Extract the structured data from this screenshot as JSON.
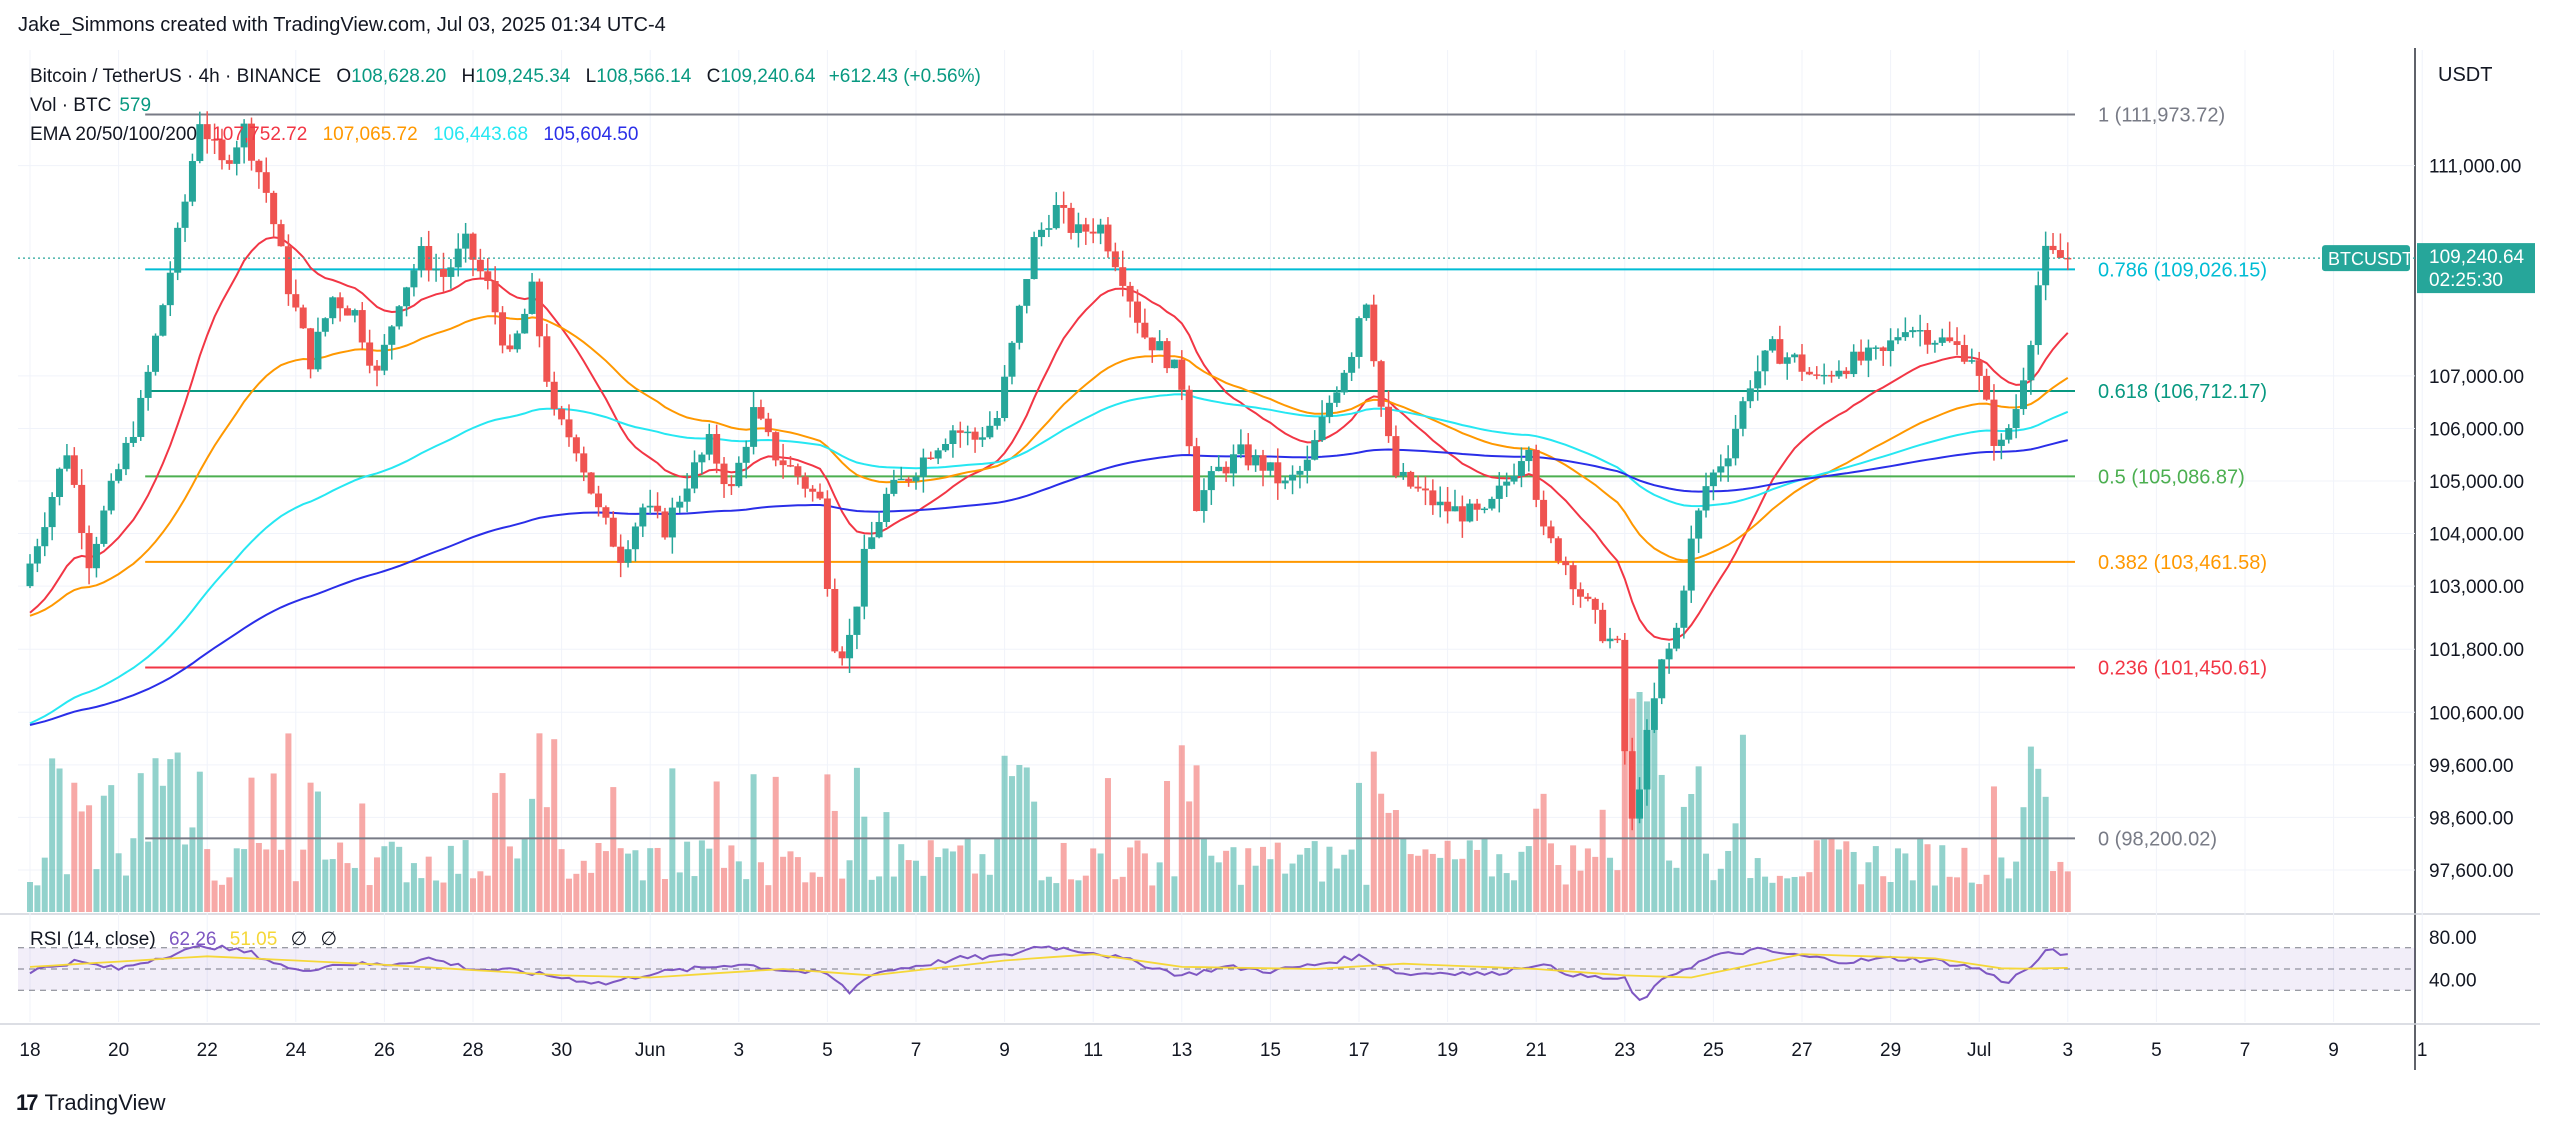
{
  "header": {
    "credit": "Jake_Simmons created with TradingView.com, Jul 03, 2025 01:34 UTC-4"
  },
  "legend": {
    "symbol": "Bitcoin / TetherUS · 4h · BINANCE",
    "open_label": "O",
    "open": "108,628.20",
    "high_label": "H",
    "high": "109,245.34",
    "low_label": "L",
    "low": "108,566.14",
    "close_label": "C",
    "close": "109,240.64",
    "change": "+612.43 (+0.56%)",
    "vol_label": "Vol · BTC",
    "vol_value": "579",
    "ema_label": "EMA 20/50/100/200",
    "ema20": "107,752.72",
    "ema50": "107,065.72",
    "ema100": "106,443.68",
    "ema200": "105,604.50",
    "rsi_label": "RSI (14, close)",
    "rsi_value": "62.26",
    "rsi_ma": "51.05",
    "rsi_na1": "∅",
    "rsi_na2": "∅"
  },
  "footer": {
    "brand": "TradingView"
  },
  "price_axis": {
    "currency": "USDT"
  },
  "colors": {
    "up": "#26a69a",
    "down": "#ef5350",
    "ema20": "#f23645",
    "ema50": "#ff9800",
    "ema100": "#26e7f2",
    "ema200": "#2a2ee8",
    "rsi_line": "#7e57c2",
    "rsi_ma": "#f5d738"
  },
  "chart_data": [
    {
      "type": "candlestick",
      "title": "Bitcoin / TetherUS · 4h · BINANCE",
      "ylim": [
        96800,
        113200
      ],
      "y_ticks": [
        "111,000.00",
        "107,000.00",
        "106,000.00",
        "105,000.00",
        "104,000.00",
        "103,000.00",
        "101,800.00",
        "100,600.00",
        "99,600.00",
        "98,600.00",
        "97,600.00"
      ],
      "y_tick_values": [
        111000,
        107000,
        106000,
        105000,
        104000,
        103000,
        101800,
        100600,
        99600,
        98600,
        97600
      ],
      "x_ticks": [
        "18",
        "20",
        "22",
        "24",
        "26",
        "28",
        "30",
        "Jun",
        "3",
        "5",
        "7",
        "9",
        "11",
        "13",
        "15",
        "17",
        "19",
        "21",
        "23",
        "25",
        "27",
        "29",
        "Jul",
        "3",
        "5",
        "7",
        "9",
        "1"
      ],
      "x_tick_days": [
        0,
        2,
        4,
        6,
        8,
        10,
        12,
        14,
        16,
        18,
        20,
        22,
        24,
        26,
        28,
        30,
        32,
        34,
        36,
        38,
        40,
        42,
        44,
        46,
        48,
        50,
        52,
        54
      ],
      "last_price_tag": {
        "symbol": "BTCUSDT",
        "price": "109,240.64",
        "countdown": "02:25:30",
        "value": 109240.64
      },
      "fib_levels": [
        {
          "ratio": "1",
          "label": "1 (111,973.72)",
          "price": 111973.72,
          "color": "#787b86"
        },
        {
          "ratio": "0.786",
          "label": "0.786 (109,026.15)",
          "price": 109026.15,
          "color": "#00bcd4"
        },
        {
          "ratio": "0.618",
          "label": "0.618 (106,712.17)",
          "price": 106712.17,
          "color": "#089981"
        },
        {
          "ratio": "0.5",
          "label": "0.5 (105,086.87)",
          "price": 105086.87,
          "color": "#4caf50"
        },
        {
          "ratio": "0.382",
          "label": "0.382 (103,461.58)",
          "price": 103461.58,
          "color": "#ff9800"
        },
        {
          "ratio": "0.236",
          "label": "0.236 (101,450.61)",
          "price": 101450.61,
          "color": "#f23645"
        },
        {
          "ratio": "0",
          "label": "0 (98,200.02)",
          "price": 98200.02,
          "color": "#787b86"
        }
      ],
      "price_path": [
        {
          "day": 0,
          "price": 103000
        },
        {
          "day": 1,
          "price": 105600
        },
        {
          "day": 1.5,
          "price": 103500
        },
        {
          "day": 2,
          "price": 104800
        },
        {
          "day": 2.7,
          "price": 106500
        },
        {
          "day": 3.2,
          "price": 108500
        },
        {
          "day": 3.6,
          "price": 110000
        },
        {
          "day": 4,
          "price": 111900
        },
        {
          "day": 4.5,
          "price": 111000
        },
        {
          "day": 5,
          "price": 111700
        },
        {
          "day": 5.5,
          "price": 110500
        },
        {
          "day": 6,
          "price": 108700
        },
        {
          "day": 6.5,
          "price": 107300
        },
        {
          "day": 7,
          "price": 108500
        },
        {
          "day": 7.5,
          "price": 108200
        },
        {
          "day": 8,
          "price": 107000
        },
        {
          "day": 8.5,
          "price": 108500
        },
        {
          "day": 9,
          "price": 109300
        },
        {
          "day": 9.5,
          "price": 108900
        },
        {
          "day": 10,
          "price": 109500
        },
        {
          "day": 10.5,
          "price": 108700
        },
        {
          "day": 11,
          "price": 107300
        },
        {
          "day": 11.5,
          "price": 108600
        },
        {
          "day": 12,
          "price": 106200
        },
        {
          "day": 12.5,
          "price": 105700
        },
        {
          "day": 13,
          "price": 104400
        },
        {
          "day": 13.5,
          "price": 103600
        },
        {
          "day": 14,
          "price": 104500
        },
        {
          "day": 14.5,
          "price": 104100
        },
        {
          "day": 15,
          "price": 105000
        },
        {
          "day": 15.5,
          "price": 105700
        },
        {
          "day": 16,
          "price": 104800
        },
        {
          "day": 16.5,
          "price": 106300
        },
        {
          "day": 17,
          "price": 105500
        },
        {
          "day": 17.5,
          "price": 105100
        },
        {
          "day": 18,
          "price": 104600
        },
        {
          "day": 18.3,
          "price": 102000
        },
        {
          "day": 18.6,
          "price": 101700
        },
        {
          "day": 19,
          "price": 103500
        },
        {
          "day": 19.5,
          "price": 104700
        },
        {
          "day": 20,
          "price": 105100
        },
        {
          "day": 20.5,
          "price": 105600
        },
        {
          "day": 21,
          "price": 106000
        },
        {
          "day": 21.5,
          "price": 105800
        },
        {
          "day": 22,
          "price": 106200
        },
        {
          "day": 22.4,
          "price": 107800
        },
        {
          "day": 22.8,
          "price": 109500
        },
        {
          "day": 23.3,
          "price": 110200
        },
        {
          "day": 23.8,
          "price": 109700
        },
        {
          "day": 24.3,
          "price": 109900
        },
        {
          "day": 24.8,
          "price": 109000
        },
        {
          "day": 25.3,
          "price": 107800
        },
        {
          "day": 25.8,
          "price": 107400
        },
        {
          "day": 26.2,
          "price": 106800
        },
        {
          "day": 26.5,
          "price": 104600
        },
        {
          "day": 27,
          "price": 105200
        },
        {
          "day": 27.5,
          "price": 105500
        },
        {
          "day": 28,
          "price": 105300
        },
        {
          "day": 28.5,
          "price": 104900
        },
        {
          "day": 29,
          "price": 105300
        },
        {
          "day": 29.5,
          "price": 106500
        },
        {
          "day": 30,
          "price": 107500
        },
        {
          "day": 30.3,
          "price": 108700
        },
        {
          "day": 30.7,
          "price": 106200
        },
        {
          "day": 31,
          "price": 105100
        },
        {
          "day": 31.5,
          "price": 104800
        },
        {
          "day": 32,
          "price": 104500
        },
        {
          "day": 32.5,
          "price": 104400
        },
        {
          "day": 33,
          "price": 104300
        },
        {
          "day": 33.5,
          "price": 105000
        },
        {
          "day": 34,
          "price": 105800
        },
        {
          "day": 34.3,
          "price": 104000
        },
        {
          "day": 34.8,
          "price": 103500
        },
        {
          "day": 35.2,
          "price": 102800
        },
        {
          "day": 35.6,
          "price": 102200
        },
        {
          "day": 36,
          "price": 101800
        },
        {
          "day": 36.3,
          "price": 98300
        },
        {
          "day": 36.6,
          "price": 99800
        },
        {
          "day": 37,
          "price": 101500
        },
        {
          "day": 37.3,
          "price": 102000
        },
        {
          "day": 37.6,
          "price": 103600
        },
        {
          "day": 38,
          "price": 104900
        },
        {
          "day": 38.5,
          "price": 105600
        },
        {
          "day": 39,
          "price": 106900
        },
        {
          "day": 39.5,
          "price": 107500
        },
        {
          "day": 40,
          "price": 107300
        },
        {
          "day": 40.5,
          "price": 106900
        },
        {
          "day": 41,
          "price": 107200
        },
        {
          "day": 41.5,
          "price": 107300
        },
        {
          "day": 42,
          "price": 107400
        },
        {
          "day": 42.5,
          "price": 108000
        },
        {
          "day": 43,
          "price": 107800
        },
        {
          "day": 43.5,
          "price": 107600
        },
        {
          "day": 44,
          "price": 107400
        },
        {
          "day": 44.3,
          "price": 106500
        },
        {
          "day": 44.6,
          "price": 105500
        },
        {
          "day": 45,
          "price": 106400
        },
        {
          "day": 45.3,
          "price": 107600
        },
        {
          "day": 45.6,
          "price": 109300
        },
        {
          "day": 46,
          "price": 109240
        }
      ]
    },
    {
      "type": "line",
      "title": "RSI (14, close)",
      "ylim": [
        0,
        100
      ],
      "y_ticks": [
        "80.00",
        "40.00"
      ],
      "y_tick_values": [
        80,
        40
      ],
      "band_upper": 70,
      "band_lower": 30,
      "series": [
        {
          "name": "RSI",
          "points": [
            {
              "day": 0,
              "rsi": 48
            },
            {
              "day": 1,
              "rsi": 57
            },
            {
              "day": 2,
              "rsi": 50
            },
            {
              "day": 3,
              "rsi": 62
            },
            {
              "day": 4,
              "rsi": 72
            },
            {
              "day": 5,
              "rsi": 65
            },
            {
              "day": 6,
              "rsi": 48
            },
            {
              "day": 7,
              "rsi": 55
            },
            {
              "day": 8,
              "rsi": 54
            },
            {
              "day": 9,
              "rsi": 60
            },
            {
              "day": 10,
              "rsi": 50
            },
            {
              "day": 11,
              "rsi": 48
            },
            {
              "day": 12,
              "rsi": 42
            },
            {
              "day": 13,
              "rsi": 36
            },
            {
              "day": 14,
              "rsi": 46
            },
            {
              "day": 15,
              "rsi": 50
            },
            {
              "day": 16,
              "rsi": 55
            },
            {
              "day": 17,
              "rsi": 49
            },
            {
              "day": 18,
              "rsi": 45
            },
            {
              "day": 18.5,
              "rsi": 28
            },
            {
              "day": 19,
              "rsi": 46
            },
            {
              "day": 20,
              "rsi": 53
            },
            {
              "day": 21,
              "rsi": 60
            },
            {
              "day": 22,
              "rsi": 62
            },
            {
              "day": 22.8,
              "rsi": 72
            },
            {
              "day": 24,
              "rsi": 66
            },
            {
              "day": 25,
              "rsi": 56
            },
            {
              "day": 26,
              "rsi": 44
            },
            {
              "day": 27,
              "rsi": 52
            },
            {
              "day": 28,
              "rsi": 48
            },
            {
              "day": 29,
              "rsi": 54
            },
            {
              "day": 30,
              "rsi": 62
            },
            {
              "day": 31,
              "rsi": 45
            },
            {
              "day": 32,
              "rsi": 47
            },
            {
              "day": 33,
              "rsi": 45
            },
            {
              "day": 34,
              "rsi": 55
            },
            {
              "day": 35,
              "rsi": 43
            },
            {
              "day": 36,
              "rsi": 40
            },
            {
              "day": 36.3,
              "rsi": 18
            },
            {
              "day": 37,
              "rsi": 44
            },
            {
              "day": 38,
              "rsi": 62
            },
            {
              "day": 39,
              "rsi": 68
            },
            {
              "day": 40,
              "rsi": 62
            },
            {
              "day": 41,
              "rsi": 57
            },
            {
              "day": 42,
              "rsi": 60
            },
            {
              "day": 43,
              "rsi": 58
            },
            {
              "day": 44,
              "rsi": 50
            },
            {
              "day": 44.6,
              "rsi": 37
            },
            {
              "day": 45.3,
              "rsi": 56
            },
            {
              "day": 45.6,
              "rsi": 70
            },
            {
              "day": 46,
              "rsi": 62
            }
          ]
        },
        {
          "name": "RSI-based MA",
          "points": [
            {
              "day": 0,
              "rsi": 52
            },
            {
              "day": 4,
              "rsi": 62
            },
            {
              "day": 8,
              "rsi": 54
            },
            {
              "day": 12,
              "rsi": 44
            },
            {
              "day": 14,
              "rsi": 42
            },
            {
              "day": 17,
              "rsi": 50
            },
            {
              "day": 19,
              "rsi": 44
            },
            {
              "day": 22,
              "rsi": 58
            },
            {
              "day": 24,
              "rsi": 64
            },
            {
              "day": 26,
              "rsi": 52
            },
            {
              "day": 29,
              "rsi": 50
            },
            {
              "day": 31,
              "rsi": 55
            },
            {
              "day": 34,
              "rsi": 50
            },
            {
              "day": 36,
              "rsi": 44
            },
            {
              "day": 37.5,
              "rsi": 42
            },
            {
              "day": 40,
              "rsi": 64
            },
            {
              "day": 43,
              "rsi": 60
            },
            {
              "day": 44.6,
              "rsi": 50
            },
            {
              "day": 46,
              "rsi": 51
            }
          ]
        }
      ]
    }
  ]
}
